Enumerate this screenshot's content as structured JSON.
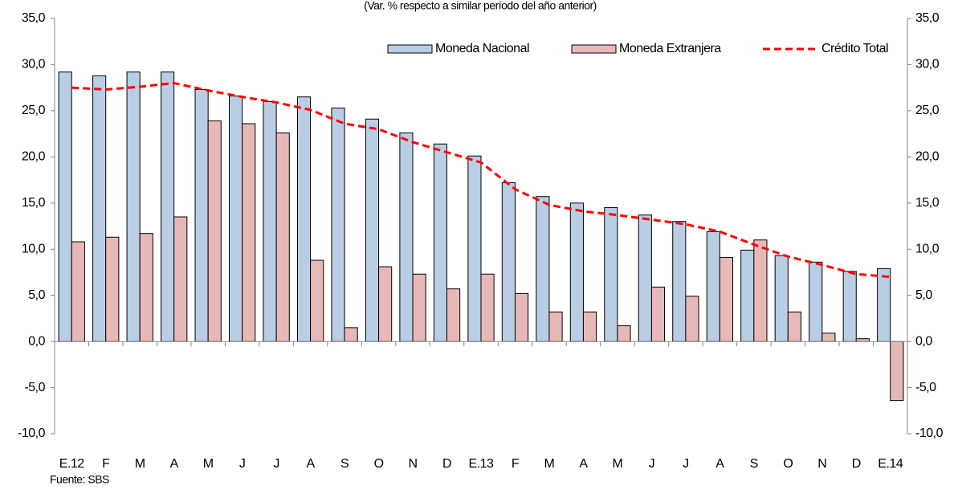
{
  "chart_data": {
    "type": "bar",
    "subtitle": "(Var. % respecto a similar período del año anterior)",
    "source": "Fuente: SBS",
    "categories": [
      "E.12",
      "F",
      "M",
      "A",
      "M",
      "J",
      "J",
      "A",
      "S",
      "O",
      "N",
      "D",
      "E.13",
      "F",
      "M",
      "A",
      "M",
      "J",
      "J",
      "A",
      "S",
      "O",
      "N",
      "D",
      "E.14"
    ],
    "series": [
      {
        "name": "Moneda Nacional",
        "type": "bar",
        "color": "#b9cde5",
        "values": [
          29.2,
          28.8,
          29.2,
          29.2,
          27.3,
          26.6,
          26.0,
          26.5,
          25.3,
          24.1,
          22.6,
          21.4,
          20.1,
          17.2,
          15.7,
          15.0,
          14.5,
          13.7,
          13.0,
          11.9,
          9.9,
          9.3,
          8.6,
          7.6,
          7.9
        ]
      },
      {
        "name": "Moneda Extranjera",
        "type": "bar",
        "color": "#e6b9b8",
        "values": [
          10.8,
          11.3,
          11.7,
          13.5,
          23.9,
          23.6,
          22.6,
          8.8,
          1.5,
          8.1,
          7.3,
          5.7,
          7.3,
          5.2,
          3.2,
          3.2,
          1.7,
          5.9,
          4.9,
          9.1,
          11.0,
          3.2,
          0.9,
          0.3,
          -6.4
        ]
      },
      {
        "name": "Crédito Total",
        "type": "line",
        "color": "#ff0000",
        "values": [
          27.5,
          27.3,
          27.6,
          28.0,
          27.2,
          26.5,
          25.9,
          25.1,
          23.6,
          23.0,
          21.6,
          20.5,
          19.4,
          16.5,
          14.8,
          14.1,
          13.7,
          13.2,
          12.7,
          11.9,
          10.5,
          9.2,
          8.3,
          7.3,
          7.0
        ]
      }
    ],
    "ylim": [
      -10,
      35
    ],
    "yticks": [
      {
        "value": -10,
        "label": "-10,0"
      },
      {
        "value": -5,
        "label": "-5,0"
      },
      {
        "value": 0,
        "label": "0,0"
      },
      {
        "value": 5,
        "label": "5,0"
      },
      {
        "value": 10,
        "label": "10,0"
      },
      {
        "value": 15,
        "label": "15,0"
      },
      {
        "value": 20,
        "label": "20,0"
      },
      {
        "value": 25,
        "label": "25,0"
      },
      {
        "value": 30,
        "label": "30,0"
      },
      {
        "value": 35,
        "label": "35,0"
      }
    ],
    "y2lim": [
      -10,
      35
    ],
    "y2ticks": [
      {
        "value": -10,
        "label": "-10,0"
      },
      {
        "value": -5,
        "label": "-5,0"
      },
      {
        "value": 0,
        "label": "0,0"
      },
      {
        "value": 5,
        "label": "5,0"
      },
      {
        "value": 10,
        "label": "10,0"
      },
      {
        "value": 15,
        "label": "15,0"
      },
      {
        "value": 20,
        "label": "20,0"
      },
      {
        "value": 25,
        "label": "25,0"
      },
      {
        "value": 30,
        "label": "30,0"
      },
      {
        "value": 35,
        "label": "35,0"
      }
    ],
    "legend": "top-right"
  }
}
